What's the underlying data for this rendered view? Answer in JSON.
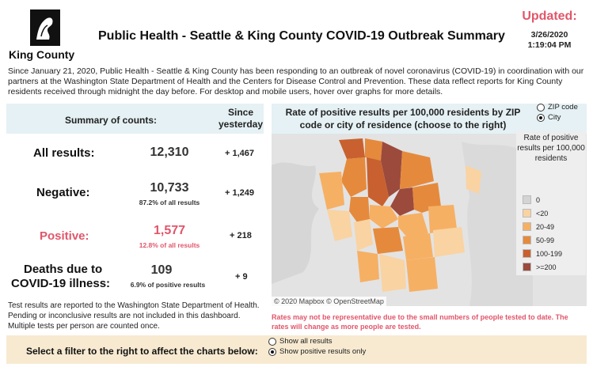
{
  "header": {
    "logo_text": "King County",
    "title": "Public Health - Seattle & King County COVID-19 Outbreak Summary",
    "updated_label": "Updated:",
    "updated_date": "3/26/2020",
    "updated_time": "1:19:04 PM"
  },
  "intro": "Since January 21, 2020, Public Health - Seattle & King County has been responding to an outbreak of novel coronavirus (COVID-19) in coordination with our partners at the Washington State Department of Health and the Centers for Disease Control and Prevention. These data reflect reports for King County residents received through midnight the day before. For desktop and mobile users, hover over graphs for more details.",
  "summary": {
    "title": "Summary of counts:",
    "since_label": "Since yesterday",
    "rows": [
      {
        "label": "All results:",
        "value": "12,310",
        "sub": "",
        "delta": "+ 1,467"
      },
      {
        "label": "Negative:",
        "value": "10,733",
        "sub": "87.2% of all results",
        "delta": "+ 1,249"
      },
      {
        "label": "Positive:",
        "value": "1,577",
        "sub": "12.8% of all results",
        "delta": "+ 218"
      },
      {
        "label_line1": "Deaths due to",
        "label_line2": "COVID-19 illness:",
        "value": "109",
        "sub": "6.9% of positive results",
        "delta": "+ 9"
      }
    ],
    "note": "Test results are reported to the Washington State Department of Health. Pending or inconclusive results are not included in this dashboard. Multiple tests per person are counted once."
  },
  "map": {
    "title": "Rate of positive results per 100,000 residents by ZIP code or city of residence (choose to the right)",
    "options": [
      {
        "label": "ZIP code",
        "selected": false
      },
      {
        "label": "City",
        "selected": true
      }
    ],
    "legend_title": "Rate of positive results per 100,000 residents",
    "legend": [
      {
        "label": "0",
        "color": "#d4d4d4"
      },
      {
        "label": "<20",
        "color": "#f9d3a2"
      },
      {
        "label": "20-49",
        "color": "#f6b064"
      },
      {
        "label": "50-99",
        "color": "#e58a3c"
      },
      {
        "label": "100-199",
        "color": "#c8612f"
      },
      {
        "label": ">=200",
        "color": "#9c4a3c"
      }
    ],
    "attribution": "© 2020 Mapbox © OpenStreetMap",
    "rates_note": "Rates may not be representative due to the small numbers of people tested to date. The rates will change as more people are tested."
  },
  "filter": {
    "label": "Select a filter to the right to affect the charts below:",
    "options": [
      {
        "label": "Show all results",
        "selected": false
      },
      {
        "label": "Show positive results only",
        "selected": true
      }
    ]
  },
  "colors": {
    "accent_red": "#e1566a",
    "panel_blue": "#e5f1f4",
    "filter_bg": "#f7ead1"
  }
}
